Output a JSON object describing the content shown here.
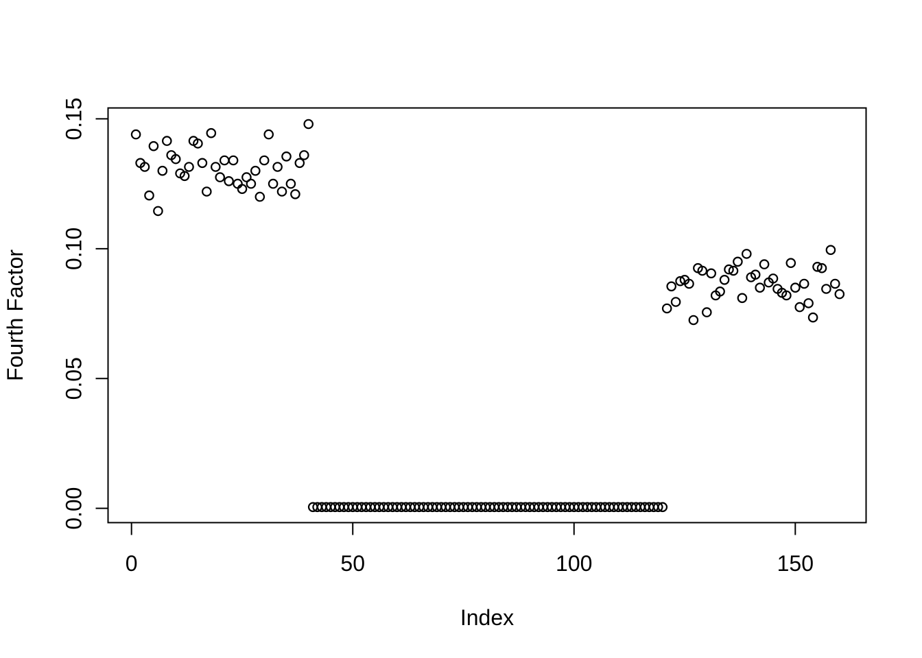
{
  "chart_data": {
    "type": "scatter",
    "title": "",
    "xlabel": "Index",
    "ylabel": "Fourth Factor",
    "grid": false,
    "legend": null,
    "background_color": "#ffffff",
    "marker": {
      "shape": "open-circle",
      "color": "#000000",
      "radius_px": 6.2,
      "stroke_px": 2.2
    },
    "x_ticks": {
      "labels": [
        "0",
        "50",
        "100",
        "150"
      ],
      "values": [
        0,
        50,
        100,
        150
      ]
    },
    "y_ticks": {
      "labels": [
        "0.00",
        "0.05",
        "0.10",
        "0.15"
      ],
      "values": [
        0,
        0.05,
        0.1,
        0.15
      ]
    },
    "xlim": [
      -5.3,
      166
    ],
    "ylim": [
      -0.0055,
      0.1542
    ],
    "points": [
      [
        1,
        0.144
      ],
      [
        2,
        0.133
      ],
      [
        3,
        0.1315
      ],
      [
        4,
        0.1205
      ],
      [
        5,
        0.1395
      ],
      [
        6,
        0.1145
      ],
      [
        7,
        0.13
      ],
      [
        8,
        0.1415
      ],
      [
        9,
        0.136
      ],
      [
        10,
        0.1345
      ],
      [
        11,
        0.129
      ],
      [
        12,
        0.128
      ],
      [
        13,
        0.1315
      ],
      [
        14,
        0.1415
      ],
      [
        15,
        0.1405
      ],
      [
        16,
        0.133
      ],
      [
        17,
        0.122
      ],
      [
        18,
        0.1445
      ],
      [
        19,
        0.1315
      ],
      [
        20,
        0.1275
      ],
      [
        21,
        0.134
      ],
      [
        22,
        0.126
      ],
      [
        23,
        0.134
      ],
      [
        24,
        0.125
      ],
      [
        25,
        0.123
      ],
      [
        26,
        0.1275
      ],
      [
        27,
        0.125
      ],
      [
        28,
        0.13
      ],
      [
        29,
        0.12
      ],
      [
        30,
        0.134
      ],
      [
        31,
        0.144
      ],
      [
        32,
        0.125
      ],
      [
        33,
        0.1315
      ],
      [
        34,
        0.122
      ],
      [
        35,
        0.1355
      ],
      [
        36,
        0.125
      ],
      [
        37,
        0.121
      ],
      [
        38,
        0.133
      ],
      [
        39,
        0.136
      ],
      [
        40,
        0.148
      ],
      [
        41,
        0.0005
      ],
      [
        42,
        0.0005
      ],
      [
        43,
        0.0005
      ],
      [
        44,
        0.0005
      ],
      [
        45,
        0.0005
      ],
      [
        46,
        0.0005
      ],
      [
        47,
        0.0005
      ],
      [
        48,
        0.0005
      ],
      [
        49,
        0.0005
      ],
      [
        50,
        0.0005
      ],
      [
        51,
        0.0005
      ],
      [
        52,
        0.0005
      ],
      [
        53,
        0.0005
      ],
      [
        54,
        0.0005
      ],
      [
        55,
        0.0005
      ],
      [
        56,
        0.0005
      ],
      [
        57,
        0.0005
      ],
      [
        58,
        0.0005
      ],
      [
        59,
        0.0005
      ],
      [
        60,
        0.0005
      ],
      [
        61,
        0.0005
      ],
      [
        62,
        0.0005
      ],
      [
        63,
        0.0005
      ],
      [
        64,
        0.0005
      ],
      [
        65,
        0.0005
      ],
      [
        66,
        0.0005
      ],
      [
        67,
        0.0005
      ],
      [
        68,
        0.0005
      ],
      [
        69,
        0.0005
      ],
      [
        70,
        0.0005
      ],
      [
        71,
        0.0005
      ],
      [
        72,
        0.0005
      ],
      [
        73,
        0.0005
      ],
      [
        74,
        0.0005
      ],
      [
        75,
        0.0005
      ],
      [
        76,
        0.0005
      ],
      [
        77,
        0.0005
      ],
      [
        78,
        0.0005
      ],
      [
        79,
        0.0005
      ],
      [
        80,
        0.0005
      ],
      [
        81,
        0.0005
      ],
      [
        82,
        0.0005
      ],
      [
        83,
        0.0005
      ],
      [
        84,
        0.0005
      ],
      [
        85,
        0.0005
      ],
      [
        86,
        0.0005
      ],
      [
        87,
        0.0005
      ],
      [
        88,
        0.0005
      ],
      [
        89,
        0.0005
      ],
      [
        90,
        0.0005
      ],
      [
        91,
        0.0005
      ],
      [
        92,
        0.0005
      ],
      [
        93,
        0.0005
      ],
      [
        94,
        0.0005
      ],
      [
        95,
        0.0005
      ],
      [
        96,
        0.0005
      ],
      [
        97,
        0.0005
      ],
      [
        98,
        0.0005
      ],
      [
        99,
        0.0005
      ],
      [
        100,
        0.0005
      ],
      [
        101,
        0.0005
      ],
      [
        102,
        0.0005
      ],
      [
        103,
        0.0005
      ],
      [
        104,
        0.0005
      ],
      [
        105,
        0.0005
      ],
      [
        106,
        0.0005
      ],
      [
        107,
        0.0005
      ],
      [
        108,
        0.0005
      ],
      [
        109,
        0.0005
      ],
      [
        110,
        0.0005
      ],
      [
        111,
        0.0005
      ],
      [
        112,
        0.0005
      ],
      [
        113,
        0.0005
      ],
      [
        114,
        0.0005
      ],
      [
        115,
        0.0005
      ],
      [
        116,
        0.0005
      ],
      [
        117,
        0.0005
      ],
      [
        118,
        0.0005
      ],
      [
        119,
        0.0005
      ],
      [
        120,
        0.0005
      ],
      [
        121,
        0.077
      ],
      [
        122,
        0.0855
      ],
      [
        123,
        0.0795
      ],
      [
        124,
        0.0875
      ],
      [
        125,
        0.088
      ],
      [
        126,
        0.0865
      ],
      [
        127,
        0.0725
      ],
      [
        128,
        0.0925
      ],
      [
        129,
        0.0915
      ],
      [
        130,
        0.0755
      ],
      [
        131,
        0.0905
      ],
      [
        132,
        0.082
      ],
      [
        133,
        0.0835
      ],
      [
        134,
        0.088
      ],
      [
        135,
        0.092
      ],
      [
        136,
        0.0915
      ],
      [
        137,
        0.095
      ],
      [
        138,
        0.081
      ],
      [
        139,
        0.098
      ],
      [
        140,
        0.089
      ],
      [
        141,
        0.09
      ],
      [
        142,
        0.085
      ],
      [
        143,
        0.094
      ],
      [
        144,
        0.087
      ],
      [
        145,
        0.0885
      ],
      [
        146,
        0.0845
      ],
      [
        147,
        0.083
      ],
      [
        148,
        0.082
      ],
      [
        149,
        0.0945
      ],
      [
        150,
        0.085
      ],
      [
        151,
        0.0775
      ],
      [
        152,
        0.0865
      ],
      [
        153,
        0.079
      ],
      [
        154,
        0.0735
      ],
      [
        155,
        0.093
      ],
      [
        156,
        0.0925
      ],
      [
        157,
        0.0845
      ],
      [
        158,
        0.0995
      ],
      [
        159,
        0.0865
      ],
      [
        160,
        0.0825
      ]
    ]
  }
}
